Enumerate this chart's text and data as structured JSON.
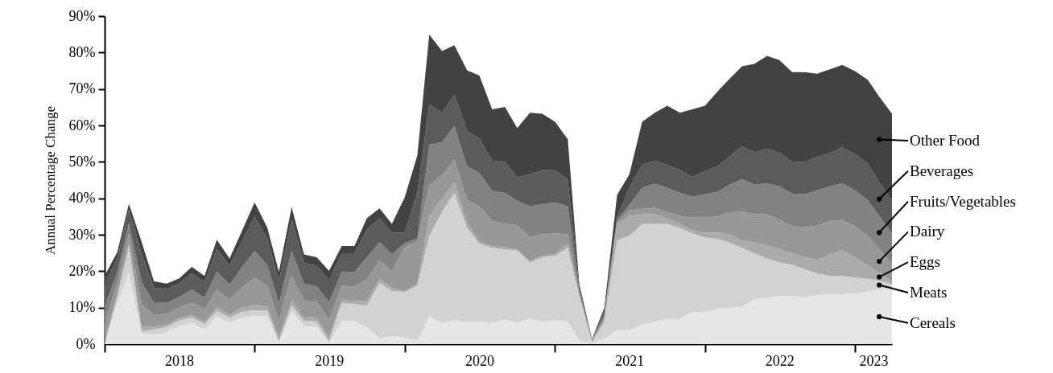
{
  "chart_data": {
    "type": "area",
    "stacked": true,
    "ylabel": "Annual Percentage Change",
    "x": [
      "2018-01",
      "2018-02",
      "2018-03",
      "2018-04",
      "2018-05",
      "2018-06",
      "2018-07",
      "2018-08",
      "2018-09",
      "2018-10",
      "2018-11",
      "2018-12",
      "2019-01",
      "2019-02",
      "2019-03",
      "2019-04",
      "2019-05",
      "2019-06",
      "2019-07",
      "2019-08",
      "2019-09",
      "2019-10",
      "2019-11",
      "2019-12",
      "2020-01",
      "2020-02",
      "2020-03",
      "2020-04",
      "2020-05",
      "2020-06",
      "2020-07",
      "2020-08",
      "2020-09",
      "2020-10",
      "2020-11",
      "2020-12",
      "2021-01",
      "2021-02",
      "2021-03",
      "2021-04",
      "2021-05",
      "2021-06",
      "2021-07",
      "2021-08",
      "2021-09",
      "2021-10",
      "2021-11",
      "2021-12",
      "2022-01",
      "2022-02",
      "2022-03",
      "2022-04",
      "2022-05",
      "2022-06",
      "2022-07",
      "2022-08",
      "2022-09",
      "2022-10",
      "2022-11",
      "2022-12",
      "2023-01",
      "2023-02",
      "2023-03",
      "2023-04"
    ],
    "xlim": [
      "2018-01",
      "2023-04"
    ],
    "xticks": [
      {
        "value": "2018-01",
        "label": null
      },
      {
        "value": "2018-07",
        "label": "2018"
      },
      {
        "value": "2019-01",
        "label": null
      },
      {
        "value": "2019-07",
        "label": "2019"
      },
      {
        "value": "2020-01",
        "label": null
      },
      {
        "value": "2020-07",
        "label": "2020"
      },
      {
        "value": "2021-01",
        "label": null
      },
      {
        "value": "2021-07",
        "label": "2021"
      },
      {
        "value": "2022-01",
        "label": null
      },
      {
        "value": "2022-07",
        "label": "2022"
      },
      {
        "value": "2023-01",
        "label": null
      },
      {
        "value": "2023-02-15",
        "label": "2023"
      }
    ],
    "ylim": [
      0,
      90
    ],
    "yticks": [
      {
        "value": 0,
        "label": "0%"
      },
      {
        "value": 10,
        "label": "10%"
      },
      {
        "value": 20,
        "label": "20%"
      },
      {
        "value": 30,
        "label": "30%"
      },
      {
        "value": 40,
        "label": "40%"
      },
      {
        "value": 50,
        "label": "50%"
      },
      {
        "value": 60,
        "label": "60%"
      },
      {
        "value": 70,
        "label": "70%"
      },
      {
        "value": 80,
        "label": "80%"
      },
      {
        "value": 90,
        "label": "90%"
      }
    ],
    "series": [
      {
        "name": "Cereals",
        "color": "#e6e6e7",
        "values": [
          0,
          11.5,
          19.5,
          3,
          2.5,
          3.2,
          5,
          5.8,
          4,
          7.6,
          5.8,
          7.3,
          7.8,
          7.6,
          0.4,
          9.1,
          4.9,
          4.7,
          0.4,
          6.3,
          6.3,
          4.7,
          1.6,
          2.1,
          1.8,
          1,
          7.6,
          5.8,
          6.5,
          6,
          6.2,
          5.8,
          6.8,
          5.8,
          7.1,
          6,
          6.5,
          6.2,
          1,
          0.3,
          1.5,
          3.8,
          3.8,
          5.4,
          6.2,
          6.9,
          6.9,
          8.8,
          8.8,
          9.7,
          10,
          10.2,
          12.4,
          12.6,
          13.2,
          13.2,
          12.8,
          13.5,
          13.7,
          13.7,
          13.9,
          14.4,
          15,
          15.4
        ]
      },
      {
        "name": "Meats",
        "color": "#d2d2d4",
        "values": [
          0,
          1.5,
          7.3,
          0.6,
          1.5,
          1.5,
          1.5,
          1.5,
          1.5,
          1.5,
          1.5,
          1.5,
          1.5,
          1.5,
          0.5,
          1.5,
          1.5,
          1.5,
          0.5,
          5,
          4.7,
          5.9,
          15.2,
          12.5,
          12.5,
          15.1,
          22.1,
          30.5,
          35,
          25.9,
          21.3,
          20.6,
          19.2,
          19.9,
          15.3,
          17.8,
          17.7,
          20.2,
          12,
          0.3,
          4.5,
          24.7,
          25.9,
          27.6,
          26.8,
          26.1,
          25,
          21.6,
          20.5,
          19.1,
          17.9,
          16.2,
          12.5,
          10.9,
          9.2,
          8.6,
          7.7,
          5.9,
          5,
          5,
          4.4,
          3.5,
          2.4,
          1.1
        ]
      },
      {
        "name": "Eggs",
        "color": "#ababad",
        "values": [
          0.9,
          0.6,
          0.6,
          1.2,
          0.7,
          0.6,
          0.6,
          0.7,
          0.7,
          1,
          0.8,
          1.1,
          1.5,
          1.1,
          0.9,
          1.4,
          0.9,
          0.9,
          1,
          0.8,
          0.8,
          1.2,
          1,
          0.9,
          0.2,
          0.4,
          5.3,
          3.7,
          2.9,
          1.5,
          0.7,
          0.4,
          0.6,
          0.3,
          0.3,
          0.4,
          0.5,
          1.1,
          0.5,
          0.1,
          0.5,
          4.1,
          5.5,
          2.6,
          2.6,
          1.5,
          1.1,
          0.8,
          1.3,
          1.8,
          2.2,
          2,
          3,
          3.6,
          3.6,
          3.1,
          3.3,
          3.7,
          5.9,
          7,
          5.5,
          3.7,
          2,
          0.7
        ]
      },
      {
        "name": "Dairy",
        "color": "#98989b",
        "values": [
          4.7,
          3.1,
          2.9,
          6.1,
          3.3,
          3,
          2.9,
          3.5,
          3.3,
          4.9,
          4.1,
          5.6,
          7.4,
          5.7,
          4.7,
          6.8,
          4.6,
          4.4,
          4.8,
          3.9,
          4,
          6,
          5.1,
          4.6,
          12.1,
          11.7,
          8.7,
          6.3,
          6.3,
          6.2,
          9.6,
          7,
          6.4,
          6.6,
          6.6,
          5.9,
          5.7,
          2.6,
          0.5,
          0.1,
          0.8,
          0.8,
          1.5,
          1.5,
          1.8,
          1.7,
          2.2,
          3.5,
          4.1,
          4.4,
          6.1,
          7.9,
          7.8,
          8.5,
          8.1,
          7.4,
          8.3,
          9.4,
          9.2,
          8.4,
          8.5,
          8.1,
          6.6,
          5.2
        ]
      },
      {
        "name": "Fruits/Vegetables",
        "color": "#828285",
        "values": [
          4.7,
          3.1,
          2.9,
          6.1,
          3.3,
          3,
          2.9,
          3.5,
          3.3,
          4.9,
          4.1,
          5.6,
          7.4,
          5.7,
          4.7,
          6.8,
          4.6,
          4.4,
          4.8,
          3.9,
          4,
          6,
          5.1,
          4.6,
          1.1,
          0.8,
          11,
          9.1,
          9.2,
          9.2,
          9.2,
          8.2,
          8.5,
          6.7,
          8.5,
          8.3,
          8.5,
          7.7,
          0.5,
          0.2,
          0.8,
          0.7,
          1.5,
          5.8,
          6.6,
          6.7,
          6.3,
          5.7,
          6.4,
          6.8,
          7.5,
          9,
          8.1,
          8.5,
          9.2,
          9,
          9,
          9.7,
          9.5,
          10,
          9.9,
          9.9,
          9.2,
          8
        ]
      },
      {
        "name": "Beverages",
        "color": "#5b5b5e",
        "values": [
          6,
          3.9,
          3.7,
          7.8,
          4.2,
          3.8,
          3.7,
          4.4,
          4.2,
          6.2,
          5.2,
          7.1,
          9.5,
          7.3,
          6,
          8.6,
          5.8,
          5.6,
          6.1,
          5,
          5.1,
          7.6,
          6.5,
          5.9,
          2.9,
          12.5,
          11,
          8.1,
          8.6,
          9.7,
          9.3,
          8.3,
          8.4,
          6.4,
          8.8,
          9.3,
          8.8,
          7.3,
          1,
          0.2,
          0.8,
          0.8,
          4.7,
          6.3,
          6.3,
          6.3,
          6.2,
          5.5,
          6.3,
          7,
          7.7,
          9,
          8.8,
          9.5,
          9.2,
          8.8,
          8.8,
          9.2,
          9.1,
          9.9,
          9.9,
          10,
          9.2,
          8.9
        ]
      },
      {
        "name": "Other Food",
        "color": "#424244",
        "values": [
          2.4,
          1.6,
          1.6,
          3.2,
          1.7,
          1.5,
          1.4,
          1.8,
          1.7,
          2.5,
          2,
          2.8,
          3.8,
          3,
          2.6,
          3.4,
          2.3,
          2.3,
          2.5,
          2,
          2,
          3.1,
          2.7,
          2.4,
          9.6,
          10.3,
          19.2,
          16.9,
          13.5,
          16.6,
          17.4,
          14.1,
          15.2,
          13.6,
          16.9,
          15.5,
          13.3,
          11.1,
          1,
          0.2,
          1,
          6,
          3.7,
          11.8,
          13.2,
          16.2,
          15.8,
          18.5,
          18,
          20.6,
          21.3,
          21.9,
          24.3,
          25.5,
          25.4,
          24.5,
          24.7,
          22.8,
          23,
          22.6,
          22.8,
          22.9,
          23.5,
          23.9
        ]
      }
    ]
  }
}
